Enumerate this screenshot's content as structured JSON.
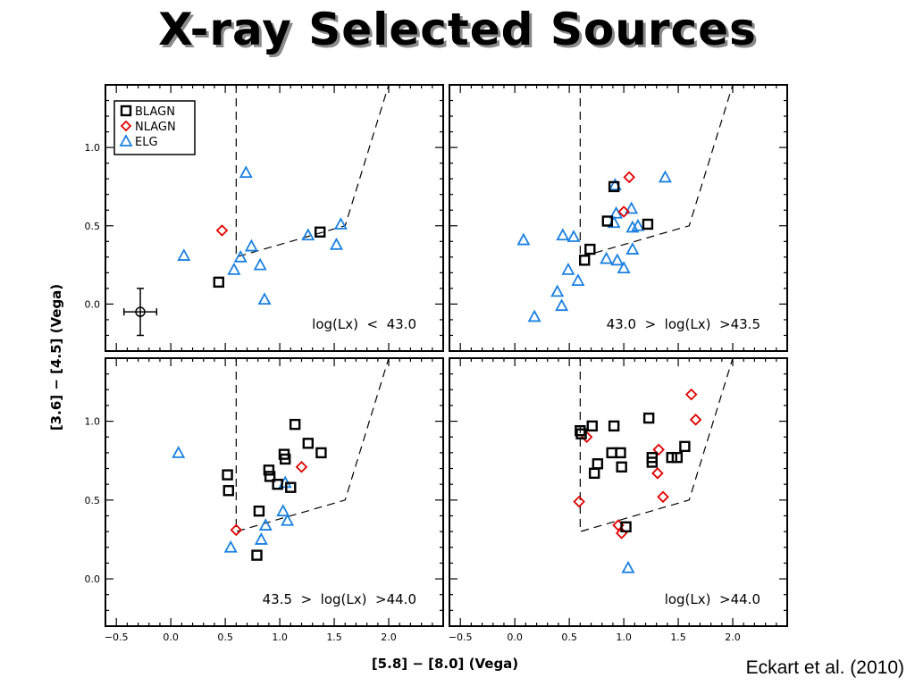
{
  "slide": {
    "title": "X-ray Selected Sources",
    "citation": "Eckart et al. (2010)"
  },
  "colors": {
    "BLAGN": "#000000",
    "NLAGN": "#e00000",
    "ELG": "#1a80e0"
  },
  "legend": [
    {
      "label": "BLAGN",
      "marker": "square"
    },
    {
      "label": "NLAGN",
      "marker": "diamond"
    },
    {
      "label": "ELG",
      "marker": "triangle"
    }
  ],
  "chart_data": {
    "type": "scatter",
    "xlabel": "[5.8] − [8.0] (Vega)",
    "ylabel": "[3.6] − [4.5] (Vega)",
    "xlim": [
      -0.6,
      2.5
    ],
    "ylim": [
      -0.3,
      1.4
    ],
    "xticks": [
      "−0.5",
      "0.0",
      "0.5",
      "1.0",
      "1.5",
      "2.0"
    ],
    "xtick_values": [
      -0.5,
      0.0,
      0.5,
      1.0,
      1.5,
      2.0
    ],
    "yticks": [
      "0.0",
      "0.5",
      "1.0"
    ],
    "ytick_values": [
      0.0,
      0.5,
      1.0
    ],
    "wedge": [
      [
        0.6,
        1.4
      ],
      [
        0.6,
        0.3
      ],
      [
        1.6,
        0.5
      ],
      [
        2.0,
        1.4
      ]
    ],
    "error_bar": {
      "x": -0.28,
      "y": -0.05,
      "xerr": 0.15,
      "yerr": 0.15
    },
    "panels": [
      {
        "label": "log(Lx)  <  43.0",
        "BLAGN": [
          [
            0.44,
            0.14
          ],
          [
            1.37,
            0.46
          ]
        ],
        "NLAGN": [
          [
            0.47,
            0.47
          ]
        ],
        "ELG": [
          [
            0.12,
            0.31
          ],
          [
            0.58,
            0.22
          ],
          [
            0.64,
            0.3
          ],
          [
            0.69,
            0.84
          ],
          [
            0.74,
            0.37
          ],
          [
            0.82,
            0.25
          ],
          [
            0.86,
            0.03
          ],
          [
            1.26,
            0.44
          ],
          [
            1.52,
            0.38
          ],
          [
            1.56,
            0.51
          ]
        ]
      },
      {
        "label": "43.0  >  log(Lx)  >43.5",
        "BLAGN": [
          [
            0.64,
            0.28
          ],
          [
            0.69,
            0.35
          ],
          [
            0.85,
            0.53
          ],
          [
            0.91,
            0.75
          ],
          [
            1.22,
            0.51
          ]
        ],
        "NLAGN": [
          [
            1.0,
            0.59
          ],
          [
            1.05,
            0.81
          ]
        ],
        "ELG": [
          [
            0.08,
            0.41
          ],
          [
            0.18,
            -0.08
          ],
          [
            0.39,
            0.08
          ],
          [
            0.43,
            -0.01
          ],
          [
            0.44,
            0.44
          ],
          [
            0.49,
            0.22
          ],
          [
            0.54,
            0.43
          ],
          [
            0.58,
            0.15
          ],
          [
            0.84,
            0.29
          ],
          [
            0.91,
            0.52
          ],
          [
            0.92,
            0.76
          ],
          [
            0.93,
            0.58
          ],
          [
            0.94,
            0.28
          ],
          [
            1.0,
            0.23
          ],
          [
            1.07,
            0.61
          ],
          [
            1.08,
            0.35
          ],
          [
            1.08,
            0.49
          ],
          [
            1.13,
            0.5
          ],
          [
            1.38,
            0.81
          ]
        ]
      },
      {
        "label": "43.5  >  log(Lx)  >44.0",
        "BLAGN": [
          [
            0.52,
            0.66
          ],
          [
            0.53,
            0.56
          ],
          [
            0.79,
            0.15
          ],
          [
            0.81,
            0.43
          ],
          [
            0.9,
            0.69
          ],
          [
            0.91,
            0.65
          ],
          [
            0.98,
            0.6
          ],
          [
            1.04,
            0.79
          ],
          [
            1.05,
            0.76
          ],
          [
            1.1,
            0.58
          ],
          [
            1.14,
            0.98
          ],
          [
            1.26,
            0.86
          ],
          [
            1.38,
            0.8
          ]
        ],
        "NLAGN": [
          [
            0.6,
            0.31
          ],
          [
            1.2,
            0.71
          ]
        ],
        "ELG": [
          [
            0.07,
            0.8
          ],
          [
            0.55,
            0.2
          ],
          [
            0.83,
            0.25
          ],
          [
            0.87,
            0.34
          ],
          [
            1.03,
            0.43
          ],
          [
            1.05,
            0.61
          ],
          [
            1.07,
            0.37
          ]
        ],
        "note": ""
      },
      {
        "label": "log(Lx)  >44.0",
        "BLAGN": [
          [
            0.6,
            0.94
          ],
          [
            0.61,
            0.92
          ],
          [
            0.71,
            0.97
          ],
          [
            0.73,
            0.67
          ],
          [
            0.76,
            0.73
          ],
          [
            0.89,
            0.8
          ],
          [
            0.91,
            0.97
          ],
          [
            0.97,
            0.8
          ],
          [
            0.98,
            0.71
          ],
          [
            1.02,
            0.33
          ],
          [
            1.23,
            1.02
          ],
          [
            1.26,
            0.74
          ],
          [
            1.26,
            0.77
          ],
          [
            1.44,
            0.77
          ],
          [
            1.49,
            0.77
          ],
          [
            1.56,
            0.84
          ]
        ],
        "NLAGN": [
          [
            0.59,
            0.49
          ],
          [
            0.66,
            0.9
          ],
          [
            0.95,
            0.34
          ],
          [
            0.98,
            0.29
          ],
          [
            1.31,
            0.67
          ],
          [
            1.32,
            0.82
          ],
          [
            1.36,
            0.52
          ],
          [
            1.62,
            1.17
          ],
          [
            1.66,
            1.01
          ]
        ],
        "ELG": [
          [
            1.04,
            0.07
          ]
        ]
      }
    ]
  }
}
